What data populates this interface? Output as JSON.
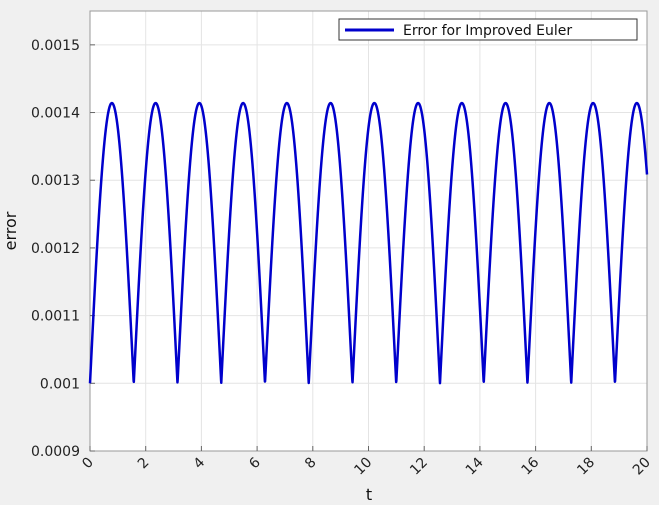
{
  "chart_data": {
    "type": "line",
    "xlabel": "t",
    "ylabel": "error",
    "xlim": [
      0,
      20
    ],
    "ylim": [
      0.0009,
      0.00155
    ],
    "x_ticks": [
      0,
      2,
      4,
      6,
      8,
      10,
      12,
      14,
      16,
      18,
      20
    ],
    "x_tick_labels": [
      "0",
      "2",
      "4",
      "6",
      "8",
      "10",
      "12",
      "14",
      "16",
      "18",
      "20"
    ],
    "y_ticks": [
      0.0009,
      0.001,
      0.0011,
      0.0012,
      0.0013,
      0.0014,
      0.0015
    ],
    "y_tick_labels": [
      "0.0009",
      "0.001",
      "0.0011",
      "0.0012",
      "0.0013",
      "0.0014",
      "0.0015"
    ],
    "grid": true,
    "legend_position": "top-right",
    "series": [
      {
        "name": "Error for Improved Euler",
        "color": "#0000cc",
        "function": "0.001 + 0.000414 * |sin(2 t)|",
        "period": 1.5708,
        "min": 0.001,
        "max": 0.001414,
        "x_range": [
          0,
          20
        ]
      }
    ]
  }
}
